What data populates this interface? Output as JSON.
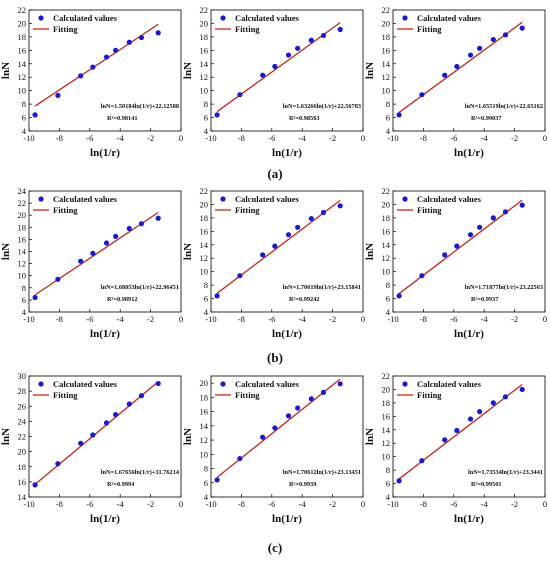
{
  "panel_labels": [
    "(a)",
    "(b)",
    "(c)"
  ],
  "colors": {
    "points": "#1a1acc",
    "fit": "#c0281e",
    "axis": "#000000"
  },
  "chart_data": [
    {
      "type": "scatter",
      "row": 0,
      "col": 0,
      "xlabel": "ln(1/r)",
      "ylabel": "lnN",
      "xlim": [
        -10,
        0
      ],
      "ylim": [
        4,
        22
      ],
      "xticks": [
        -10,
        -8,
        -6,
        -4,
        -2,
        0
      ],
      "yticks": [
        4,
        6,
        8,
        10,
        12,
        14,
        16,
        18,
        20,
        22
      ],
      "legend": {
        "points": "Calculated values",
        "fit": "Fitting"
      },
      "equation": "lnN=1.50184ln(1/r)+22.12588",
      "r2": "R²=0.98141",
      "x": [
        -9.6,
        -8.1,
        -6.6,
        -5.8,
        -4.9,
        -4.3,
        -3.4,
        -2.6,
        -1.5
      ],
      "y": [
        6.4,
        9.3,
        12.2,
        13.5,
        15.0,
        16.0,
        17.2,
        17.9,
        18.6
      ],
      "fit": {
        "slope": 1.50184,
        "intercept": 22.12588,
        "x_range": [
          -9.6,
          -1.5
        ]
      }
    },
    {
      "type": "scatter",
      "row": 0,
      "col": 1,
      "xlabel": "ln(1/r)",
      "ylabel": "lnN",
      "xlim": [
        -10,
        0
      ],
      "ylim": [
        4,
        22
      ],
      "xticks": [
        -10,
        -8,
        -6,
        -4,
        -2,
        0
      ],
      "yticks": [
        4,
        6,
        8,
        10,
        12,
        14,
        16,
        18,
        20,
        22
      ],
      "legend": {
        "points": "Calculated values",
        "fit": "Fitting"
      },
      "equation": "lnN=1.63266ln(1/r)+22.56783",
      "r2": "R²=0.98563",
      "x": [
        -9.6,
        -8.1,
        -6.6,
        -5.8,
        -4.9,
        -4.3,
        -3.4,
        -2.6,
        -1.5
      ],
      "y": [
        6.4,
        9.4,
        12.3,
        13.6,
        15.3,
        16.3,
        17.5,
        18.2,
        19.1
      ],
      "fit": {
        "slope": 1.63266,
        "intercept": 22.56783,
        "x_range": [
          -9.6,
          -1.5
        ]
      }
    },
    {
      "type": "scatter",
      "row": 0,
      "col": 2,
      "xlabel": "ln(1/r)",
      "ylabel": "lnN",
      "xlim": [
        -10,
        0
      ],
      "ylim": [
        4,
        22
      ],
      "xticks": [
        -10,
        -8,
        -6,
        -4,
        -2,
        0
      ],
      "yticks": [
        4,
        6,
        8,
        10,
        12,
        14,
        16,
        18,
        20,
        22
      ],
      "legend": {
        "points": "Calculated values",
        "fit": "Fitting"
      },
      "equation": "lnN=1.65519ln(1/r)+22.65162",
      "r2": "R²=0.99037",
      "x": [
        -9.6,
        -8.1,
        -6.6,
        -5.8,
        -4.9,
        -4.3,
        -3.4,
        -2.6,
        -1.5
      ],
      "y": [
        6.4,
        9.4,
        12.3,
        13.6,
        15.3,
        16.3,
        17.6,
        18.3,
        19.3
      ],
      "fit": {
        "slope": 1.65519,
        "intercept": 22.65162,
        "x_range": [
          -9.6,
          -1.5
        ]
      }
    },
    {
      "type": "scatter",
      "row": 1,
      "col": 0,
      "xlabel": "ln(1/r)",
      "ylabel": "lnN",
      "xlim": [
        -10,
        0
      ],
      "ylim": [
        4,
        24
      ],
      "xticks": [
        -10,
        -8,
        -6,
        -4,
        -2,
        0
      ],
      "yticks": [
        4,
        6,
        8,
        10,
        12,
        14,
        16,
        18,
        20,
        22,
        24
      ],
      "legend": {
        "points": "Calculated values",
        "fit": "Fitting"
      },
      "equation": "lnN=1.68053ln(1/r)+22.96451",
      "r2": "R²=0.98912",
      "x": [
        -9.6,
        -8.1,
        -6.6,
        -5.8,
        -4.9,
        -4.3,
        -3.4,
        -2.6,
        -1.5
      ],
      "y": [
        6.4,
        9.4,
        12.4,
        13.7,
        15.4,
        16.5,
        17.8,
        18.6,
        19.5
      ],
      "fit": {
        "slope": 1.68053,
        "intercept": 22.96451,
        "x_range": [
          -9.6,
          -1.5
        ]
      }
    },
    {
      "type": "scatter",
      "row": 1,
      "col": 1,
      "xlabel": "ln(1/r)",
      "ylabel": "lnN",
      "xlim": [
        -10,
        0
      ],
      "ylim": [
        4,
        22
      ],
      "xticks": [
        -10,
        -8,
        -6,
        -4,
        -2,
        0
      ],
      "yticks": [
        4,
        6,
        8,
        10,
        12,
        14,
        16,
        18,
        20,
        22
      ],
      "legend": {
        "points": "Calculated values",
        "fit": "Fitting"
      },
      "equation": "lnN=1.70619ln(1/r)+23.15841",
      "r2": "R²=0.99242",
      "x": [
        -9.6,
        -8.1,
        -6.6,
        -5.8,
        -4.9,
        -4.3,
        -3.4,
        -2.6,
        -1.5
      ],
      "y": [
        6.4,
        9.4,
        12.5,
        13.8,
        15.5,
        16.6,
        17.9,
        18.8,
        19.8
      ],
      "fit": {
        "slope": 1.70619,
        "intercept": 23.15841,
        "x_range": [
          -9.6,
          -1.5
        ]
      }
    },
    {
      "type": "scatter",
      "row": 1,
      "col": 2,
      "xlabel": "ln(1/r)",
      "ylabel": "lnN",
      "xlim": [
        -10,
        0
      ],
      "ylim": [
        4,
        22
      ],
      "xticks": [
        -10,
        -8,
        -6,
        -4,
        -2,
        0
      ],
      "yticks": [
        4,
        6,
        8,
        10,
        12,
        14,
        16,
        18,
        20,
        22
      ],
      "legend": {
        "points": "Calculated values",
        "fit": "Fitting"
      },
      "equation": "lnN=1.71877ln(1/r)+23.22563",
      "r2": "R²=0.9937",
      "x": [
        -9.6,
        -8.1,
        -6.6,
        -5.8,
        -4.9,
        -4.3,
        -3.4,
        -2.6,
        -1.5
      ],
      "y": [
        6.4,
        9.4,
        12.5,
        13.8,
        15.5,
        16.6,
        18.0,
        18.9,
        19.9
      ],
      "fit": {
        "slope": 1.71877,
        "intercept": 23.22563,
        "x_range": [
          -9.6,
          -1.5
        ]
      }
    },
    {
      "type": "scatter",
      "row": 2,
      "col": 0,
      "xlabel": "ln(1/r)",
      "ylabel": "lnN",
      "xlim": [
        -10,
        0
      ],
      "ylim": [
        14,
        30
      ],
      "xticks": [
        -10,
        -8,
        -6,
        -4,
        -2,
        0
      ],
      "yticks": [
        14,
        16,
        18,
        20,
        22,
        24,
        26,
        28,
        30
      ],
      "legend": {
        "points": "Calculated values",
        "fit": "Fitting"
      },
      "equation": "lnN=1.67656ln(1/r)+31.76214",
      "r2": "R²=0.9994",
      "x": [
        -9.6,
        -8.1,
        -6.6,
        -5.8,
        -4.9,
        -4.3,
        -3.4,
        -2.6,
        -1.5
      ],
      "y": [
        15.6,
        18.4,
        21.1,
        22.2,
        23.8,
        24.9,
        26.3,
        27.4,
        29.0
      ],
      "fit": {
        "slope": 1.67656,
        "intercept": 31.76214,
        "x_range": [
          -9.6,
          -1.5
        ]
      }
    },
    {
      "type": "scatter",
      "row": 2,
      "col": 1,
      "xlabel": "ln(1/r)",
      "ylabel": "lnN",
      "xlim": [
        -10,
        0
      ],
      "ylim": [
        4,
        21
      ],
      "xticks": [
        -10,
        -8,
        -6,
        -4,
        -2,
        0
      ],
      "yticks": [
        4,
        6,
        8,
        10,
        12,
        14,
        16,
        18,
        20
      ],
      "legend": {
        "points": "Calculated values",
        "fit": "Fitting"
      },
      "equation": "lnN=1.70612ln(1/r)+23.13451",
      "r2": "R²=0.9939",
      "x": [
        -9.6,
        -8.1,
        -6.6,
        -5.8,
        -4.9,
        -4.3,
        -3.4,
        -2.6,
        -1.5
      ],
      "y": [
        6.4,
        9.4,
        12.4,
        13.7,
        15.4,
        16.5,
        17.8,
        18.7,
        19.9
      ],
      "fit": {
        "slope": 1.70612,
        "intercept": 23.13451,
        "x_range": [
          -9.6,
          -1.5
        ]
      }
    },
    {
      "type": "scatter",
      "row": 2,
      "col": 2,
      "xlabel": "ln(1/r)",
      "ylabel": "lnN",
      "xlim": [
        -10,
        0
      ],
      "ylim": [
        4,
        22
      ],
      "xticks": [
        -10,
        -8,
        -6,
        -4,
        -2,
        0
      ],
      "yticks": [
        4,
        6,
        8,
        10,
        12,
        14,
        16,
        18,
        20,
        22
      ],
      "legend": {
        "points": "Calculated values",
        "fit": "Fitting"
      },
      "equation": "lnN=1.73534ln(1/r)+23.3441",
      "r2": "R²=0.99501",
      "x": [
        -9.6,
        -8.1,
        -6.6,
        -5.8,
        -4.9,
        -4.3,
        -3.4,
        -2.6,
        -1.5
      ],
      "y": [
        6.4,
        9.4,
        12.5,
        13.9,
        15.6,
        16.7,
        18.0,
        18.9,
        20.0
      ],
      "fit": {
        "slope": 1.73534,
        "intercept": 23.3441,
        "x_range": [
          -9.6,
          -1.5
        ]
      }
    }
  ]
}
